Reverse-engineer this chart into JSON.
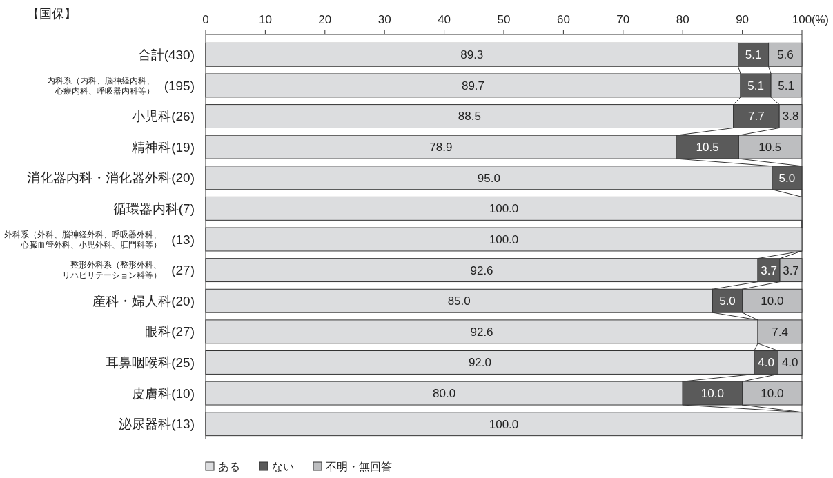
{
  "chart_data": {
    "type": "bar",
    "orientation": "horizontal",
    "stacked": true,
    "title": "【国保】",
    "xlabel": "(%)",
    "categories": [
      "合計(430)",
      "内科系（内科、脳神経内科、心療内科、呼吸器内科等） (195)",
      "小児科(26)",
      "精神科(19)",
      "消化器内科・消化器外科(20)",
      "循環器内科(7)",
      "外科系（外科、脳神経外科、呼吸器外科、心臓血管外科、小児外科、肛門科等） (13)",
      "整形外科系（整形外科、リハビリテーション科等） (27)",
      "産科・婦人科(20)",
      "眼科(27)",
      "耳鼻咽喉科(25)",
      "皮膚科(10)",
      "泌尿器科(13)"
    ],
    "series": [
      {
        "name": "ある",
        "color": "#dcdddf",
        "values": [
          89.3,
          89.7,
          88.5,
          78.9,
          95.0,
          100.0,
          100.0,
          92.6,
          85.0,
          92.6,
          92.0,
          80.0,
          100.0
        ],
        "value_labels": [
          "89.3",
          "89.7",
          "88.5",
          "78.9",
          "95.0",
          "100.0",
          "100.0",
          "92.6",
          "85.0",
          "92.6",
          "92.0",
          "80.0",
          "100.0"
        ]
      },
      {
        "name": "ない",
        "color": "#5a5a5a",
        "values": [
          5.1,
          5.1,
          7.7,
          10.5,
          5.0,
          0,
          0,
          3.7,
          5.0,
          0,
          4.0,
          10.0,
          0
        ],
        "value_labels": [
          "5.1",
          "5.1",
          "7.7",
          "10.5",
          "5.0",
          null,
          null,
          "3.7",
          "5.0",
          null,
          "4.0",
          "10.0",
          null
        ]
      },
      {
        "name": "不明・無回答",
        "color": "#bdbec0",
        "values": [
          5.6,
          5.1,
          3.8,
          10.5,
          0,
          0,
          0,
          3.7,
          10.0,
          7.4,
          4.0,
          10.0,
          0
        ],
        "value_labels": [
          "5.6",
          "5.1",
          "3.8",
          "10.5",
          null,
          null,
          null,
          "3.7",
          "10.0",
          "7.4",
          "4.0",
          "10.0",
          null
        ]
      }
    ],
    "xlim": [
      0,
      100
    ],
    "xticks": [
      0,
      10,
      20,
      30,
      40,
      50,
      60,
      70,
      80,
      90,
      100
    ],
    "grid": false,
    "legend": "bottom left"
  }
}
